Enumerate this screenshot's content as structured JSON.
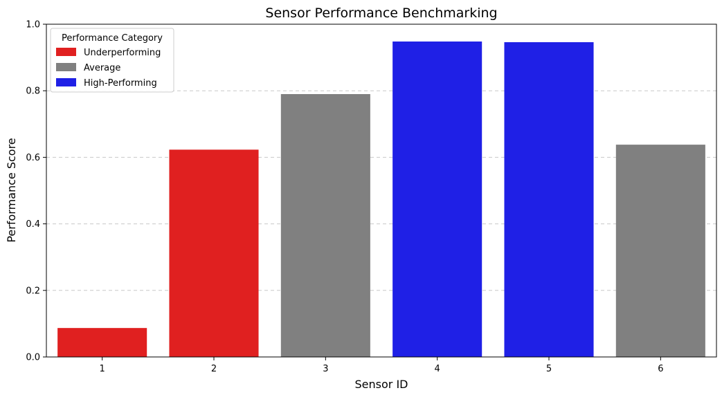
{
  "chart_data": {
    "type": "bar",
    "title": "Sensor Performance Benchmarking",
    "xlabel": "Sensor ID",
    "ylabel": "Performance Score",
    "categories": [
      "1",
      "2",
      "3",
      "4",
      "5",
      "6"
    ],
    "values": [
      0.087,
      0.623,
      0.79,
      0.948,
      0.946,
      0.638
    ],
    "bar_category": [
      "Underperforming",
      "Underperforming",
      "Average",
      "High-Performing",
      "High-Performing",
      "Average"
    ],
    "ylim": [
      0.0,
      1.0
    ],
    "yticks": [
      "0.0",
      "0.2",
      "0.4",
      "0.6",
      "0.8",
      "1.0"
    ],
    "grid": "horizontal dashed",
    "legend": {
      "title": "Performance Category",
      "placement": "top-left",
      "entries": [
        {
          "name": "Underperforming",
          "color": "#e02020"
        },
        {
          "name": "Average",
          "color": "#808080"
        },
        {
          "name": "High-Performing",
          "color": "#1f20e6"
        }
      ]
    }
  }
}
